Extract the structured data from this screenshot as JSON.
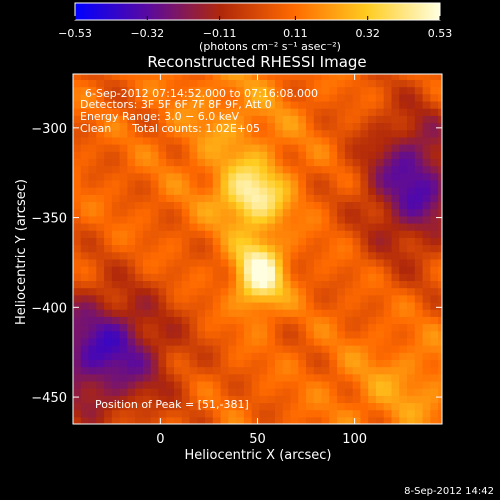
{
  "chart_data": {
    "type": "heatmap",
    "title": "Reconstructed RHESSI Image",
    "xlabel": "Heliocentric X (arcsec)",
    "ylabel": "Heliocentric Y (arcsec)",
    "xlim": [
      -45,
      145
    ],
    "ylim": [
      -465,
      -270
    ],
    "x_ticks": [
      0,
      50,
      100
    ],
    "x_tick_labels": [
      "0",
      "50",
      "100"
    ],
    "y_ticks": [
      -300,
      -350,
      -400,
      -450
    ],
    "y_tick_labels": [
      "−300",
      "−350",
      "−400",
      "−450"
    ],
    "colorbar": {
      "min": -0.53,
      "max": 0.53,
      "ticks": [
        -0.53,
        -0.32,
        -0.11,
        0.11,
        0.32,
        0.53
      ],
      "tick_labels": [
        "−0.53",
        "−0.32",
        "−0.11",
        "0.11",
        "0.32",
        "0.53"
      ],
      "unit_label": "(photons cm⁻² s⁻¹ asec⁻²)",
      "colors": [
        "#0000ff",
        "#5a0aa0",
        "#b0280a",
        "#ff6a00",
        "#ffcc20",
        "#ffffe0"
      ]
    },
    "annotations": [
      "6-Sep-2012 07:14:52.000 to 07:16:08.000",
      "Detectors: 3F 5F 6F 7F 8F 9F, Att 0",
      "Energy Range: 3.0 − 6.0 keV",
      "Clean      Total counts: 1.02E+05"
    ],
    "peak_label": "Position of Peak = [51,-381]",
    "peak": [
      51,
      -381
    ],
    "footer": "8-Sep-2012 14:42",
    "grid": false
  }
}
